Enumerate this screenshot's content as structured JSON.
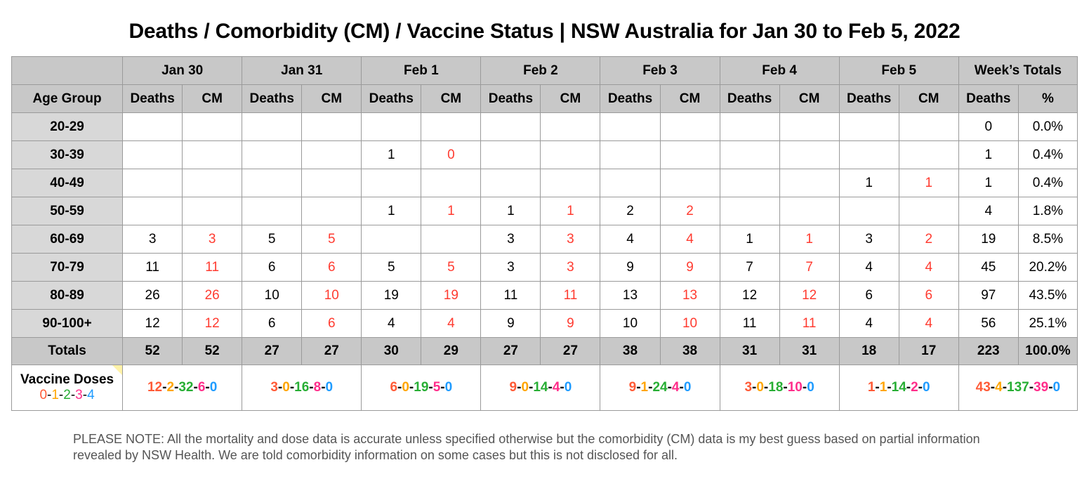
{
  "title": "Deaths / Comorbidity (CM) / Vaccine Status | NSW Australia for Jan 30 to Feb 5, 2022",
  "header": {
    "days": [
      "Jan 30",
      "Jan 31",
      "Feb 1",
      "Feb 2",
      "Feb 3",
      "Feb 4",
      "Feb 5"
    ],
    "totals_label": "Week’s Totals",
    "age_group_label": "Age Group",
    "deaths_label": "Deaths",
    "cm_label": "CM",
    "pct_label": "%"
  },
  "rows": [
    {
      "age": "20-29",
      "cells": [
        "",
        "",
        "",
        "",
        "",
        "",
        "",
        "",
        "",
        "",
        "",
        "",
        "",
        ""
      ],
      "total": "0",
      "pct": "0.0%"
    },
    {
      "age": "30-39",
      "cells": [
        "",
        "",
        "",
        "",
        "1",
        "0",
        "",
        "",
        "",
        "",
        "",
        "",
        "",
        ""
      ],
      "total": "1",
      "pct": "0.4%"
    },
    {
      "age": "40-49",
      "cells": [
        "",
        "",
        "",
        "",
        "",
        "",
        "",
        "",
        "",
        "",
        "",
        "",
        "1",
        "1"
      ],
      "total": "1",
      "pct": "0.4%"
    },
    {
      "age": "50-59",
      "cells": [
        "",
        "",
        "",
        "",
        "1",
        "1",
        "1",
        "1",
        "2",
        "2",
        "",
        "",
        "",
        ""
      ],
      "total": "4",
      "pct": "1.8%"
    },
    {
      "age": "60-69",
      "cells": [
        "3",
        "3",
        "5",
        "5",
        "",
        "",
        "3",
        "3",
        "4",
        "4",
        "1",
        "1",
        "3",
        "2"
      ],
      "total": "19",
      "pct": "8.5%"
    },
    {
      "age": "70-79",
      "cells": [
        "11",
        "11",
        "6",
        "6",
        "5",
        "5",
        "3",
        "3",
        "9",
        "9",
        "7",
        "7",
        "4",
        "4"
      ],
      "total": "45",
      "pct": "20.2%"
    },
    {
      "age": "80-89",
      "cells": [
        "26",
        "26",
        "10",
        "10",
        "19",
        "19",
        "11",
        "11",
        "13",
        "13",
        "12",
        "12",
        "6",
        "6"
      ],
      "total": "97",
      "pct": "43.5%"
    },
    {
      "age": "90-100+",
      "cells": [
        "12",
        "12",
        "6",
        "6",
        "4",
        "4",
        "9",
        "9",
        "10",
        "10",
        "11",
        "11",
        "4",
        "4"
      ],
      "total": "56",
      "pct": "25.1%"
    }
  ],
  "totals": {
    "label": "Totals",
    "cells": [
      "52",
      "52",
      "27",
      "27",
      "30",
      "29",
      "27",
      "27",
      "38",
      "38",
      "31",
      "31",
      "18",
      "17"
    ],
    "total": "223",
    "pct": "100.0%"
  },
  "vaccine": {
    "label": "Vaccine Doses",
    "legend": [
      "0",
      "1",
      "2",
      "3",
      "4"
    ],
    "days": [
      [
        "12",
        "2",
        "32",
        "6",
        "0"
      ],
      [
        "3",
        "0",
        "16",
        "8",
        "0"
      ],
      [
        "6",
        "0",
        "19",
        "5",
        "0"
      ],
      [
        "9",
        "0",
        "14",
        "4",
        "0"
      ],
      [
        "9",
        "1",
        "24",
        "4",
        "0"
      ],
      [
        "3",
        "0",
        "18",
        "10",
        "0"
      ],
      [
        "1",
        "1",
        "14",
        "2",
        "0"
      ]
    ],
    "total": [
      "43",
      "4",
      "137",
      "39",
      "0"
    ],
    "colors": [
      "#ff5a36",
      "#ffa500",
      "#27ae34",
      "#ff2d8a",
      "#1e9bff"
    ]
  },
  "note": "PLEASE NOTE: All the mortality and dose data is accurate unless specified otherwise but the comorbidity (CM) data is my best guess based on partial information revealed by NSW Health. We are told comorbidity information on some cases but this is not disclosed for all."
}
